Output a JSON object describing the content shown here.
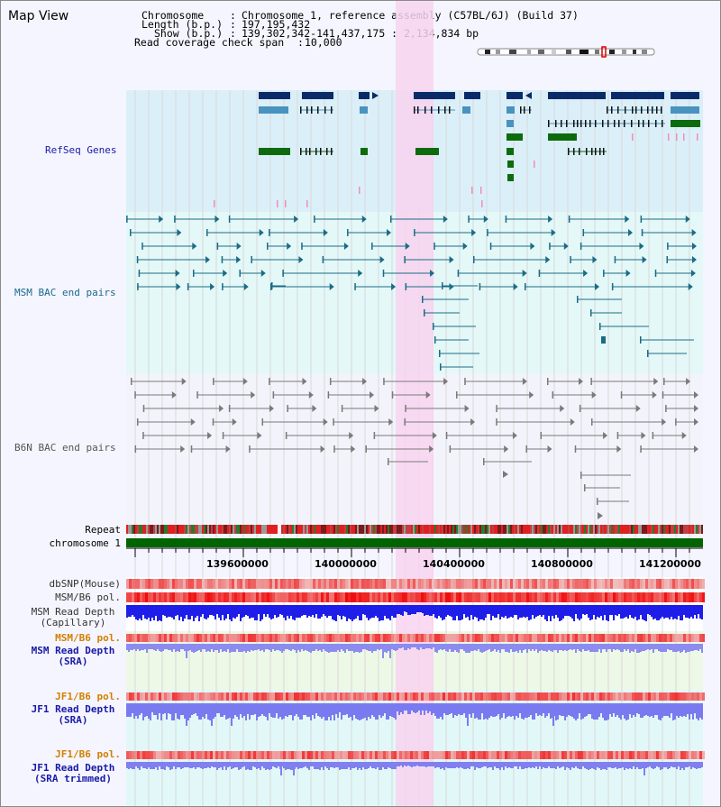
{
  "title": "Map View",
  "header": {
    "chromosome_key": "Chromosome",
    "chromosome_val": "Chromosome 1, reference assembly (C57BL/6J) (Build 37)",
    "length_key": "Length (b.p.)",
    "length_val": "197,195,432",
    "show_key": "Show (b.p.)",
    "show_val": "139,302,342-141,437,175 : 2,134,834 bp",
    "coverage_key": "Read coverage check span",
    "coverage_val": "10,000"
  },
  "tracks": {
    "refseq": "RefSeq Genes",
    "msm_bac": "MSM BAC end pairs",
    "b6n_bac": "B6N BAC end pairs",
    "repeat": "Repeat",
    "chromosome": "chromosome 1",
    "dbsnp": "dbSNP(Mouse)",
    "msm_b6_pol_1": "MSM/B6 pol.",
    "msm_depth_cap_1": "MSM Read Depth",
    "msm_depth_cap_2": "(Capillary)",
    "msm_b6_pol_2": "MSM/B6 pol.",
    "msm_depth_sra_1": "MSM Read Depth",
    "msm_depth_sra_2": "(SRA)",
    "jf1_pol_1": "JF1/B6 pol.",
    "jf1_depth_1": "JF1 Read Depth",
    "jf1_depth_2": "(SRA)",
    "jf1_pol_2": "JF1/B6 pol.",
    "jf1_trim_1": "JF1 Read Depth",
    "jf1_trim_2": "(SRA trimmed)"
  },
  "axis": {
    "ticks": [
      "139600000",
      "140000000",
      "140400000",
      "140800000",
      "141200000"
    ]
  },
  "colors": {
    "refseq_bg": "#dbeff9",
    "msm_bg": "#e4f8f8",
    "b6n_bg": "#f3f3fb",
    "highlight": "#f8d4f0",
    "gene_navy": "#0a2b68",
    "gene_blue": "#4a92bf",
    "gene_green": "#0d6b0d",
    "msm_bac": "#1c6b86",
    "b6n_bac": "#7a7a7a",
    "refseq_label": "#1a1aa8",
    "msm_label": "#1a6a8a",
    "pol_label": "#d28000",
    "depth_label": "#1a1aa8"
  }
}
